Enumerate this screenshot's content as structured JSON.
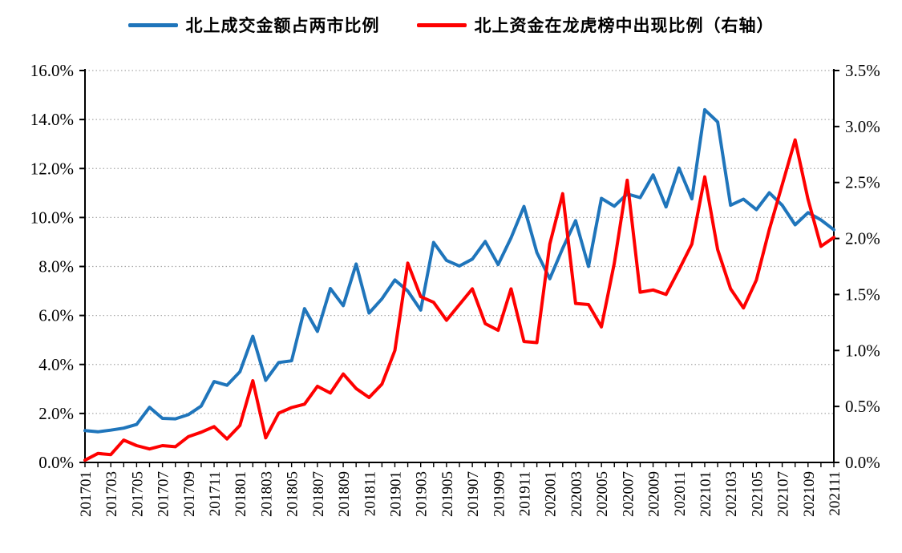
{
  "legend": {
    "series1_label": "北上成交金额占两市比例",
    "series2_label": "北上资金在龙虎榜中出现比例（右轴）"
  },
  "chart_data": {
    "type": "line",
    "title": "",
    "grid": "dotted-horizontal",
    "legend_position": "top-center",
    "categories": [
      "201701",
      "201702",
      "201703",
      "201704",
      "201705",
      "201706",
      "201707",
      "201708",
      "201709",
      "201710",
      "201711",
      "201712",
      "201801",
      "201802",
      "201803",
      "201804",
      "201805",
      "201806",
      "201807",
      "201808",
      "201809",
      "201810",
      "201811",
      "201812",
      "201901",
      "201902",
      "201903",
      "201904",
      "201905",
      "201906",
      "201907",
      "201908",
      "201909",
      "201910",
      "201911",
      "201912",
      "202001",
      "202002",
      "202003",
      "202004",
      "202005",
      "202006",
      "202007",
      "202008",
      "202009",
      "202010",
      "202011",
      "202012",
      "202101",
      "202102",
      "202103",
      "202104",
      "202105",
      "202106",
      "202107",
      "202108",
      "202109",
      "202110",
      "202111"
    ],
    "x_tick_labels_shown_every": 2,
    "left_axis": {
      "min": 0,
      "max": 16,
      "step": 2,
      "unit": "%",
      "tick_labels": [
        "0.0%",
        "2.0%",
        "4.0%",
        "6.0%",
        "8.0%",
        "10.0%",
        "12.0%",
        "14.0%",
        "16.0%"
      ]
    },
    "right_axis": {
      "min": 0,
      "max": 3.5,
      "step": 0.5,
      "unit": "%",
      "tick_labels": [
        "0.0%",
        "0.5%",
        "1.0%",
        "1.5%",
        "2.0%",
        "2.5%",
        "3.0%",
        "3.5%"
      ]
    },
    "series": [
      {
        "name": "北上成交金额占两市比例",
        "axis": "left",
        "color": "#1F75BB",
        "values": [
          1.3,
          1.25,
          1.32,
          1.4,
          1.55,
          2.25,
          1.8,
          1.78,
          1.95,
          2.3,
          3.3,
          3.15,
          3.7,
          5.15,
          3.35,
          4.08,
          4.15,
          6.28,
          5.35,
          7.1,
          6.4,
          8.1,
          6.1,
          6.68,
          7.45,
          7.0,
          6.22,
          8.98,
          8.25,
          8.02,
          8.3,
          9.02,
          8.08,
          9.17,
          10.45,
          8.57,
          7.5,
          8.74,
          9.87,
          8.0,
          10.78,
          10.46,
          10.96,
          10.81,
          11.74,
          10.43,
          12.02,
          10.76,
          14.4,
          13.9,
          10.5,
          10.75,
          10.32,
          11.01,
          10.5,
          9.7,
          10.2,
          9.9,
          9.5
        ]
      },
      {
        "name": "北上资金在龙虎榜中出现比例（右轴）",
        "axis": "right",
        "color": "#FE0000",
        "values": [
          0.02,
          0.08,
          0.07,
          0.2,
          0.15,
          0.12,
          0.15,
          0.14,
          0.23,
          0.27,
          0.32,
          0.21,
          0.33,
          0.73,
          0.22,
          0.44,
          0.49,
          0.52,
          0.68,
          0.62,
          0.79,
          0.66,
          0.58,
          0.7,
          1.0,
          1.78,
          1.48,
          1.43,
          1.27,
          1.41,
          1.55,
          1.24,
          1.18,
          1.55,
          1.08,
          1.07,
          1.95,
          2.4,
          1.42,
          1.41,
          1.21,
          1.78,
          2.52,
          1.52,
          1.54,
          1.5,
          1.72,
          1.95,
          2.55,
          1.9,
          1.55,
          1.38,
          1.63,
          2.08,
          2.48,
          2.88,
          2.35,
          1.93,
          2.01
        ]
      }
    ]
  },
  "colors": {
    "axis": "#000000",
    "gridline": "#a8a8a8",
    "background": "#ffffff"
  }
}
